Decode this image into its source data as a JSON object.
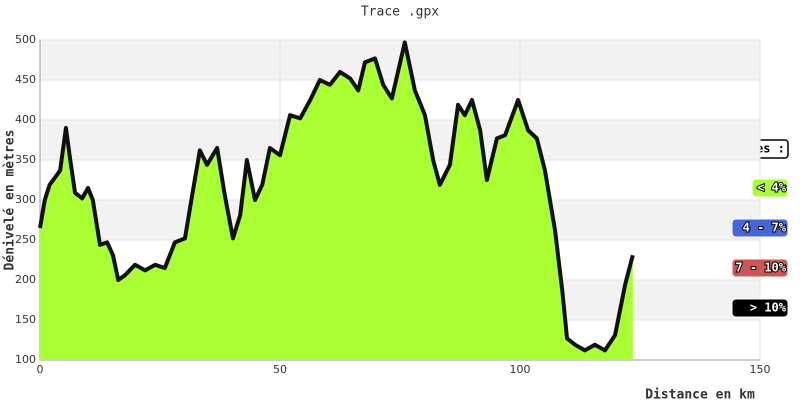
{
  "chart_data": {
    "type": "area",
    "title": "Trace .gpx",
    "x_label": "Distance en km",
    "y_label": "Dénivelé en mètres",
    "xlim": [
      0,
      150
    ],
    "xticks": [
      0,
      50,
      100,
      150
    ],
    "ylim": [
      100,
      500
    ],
    "yticks": [
      100,
      150,
      200,
      250,
      300,
      350,
      400,
      450,
      500
    ],
    "grid": true,
    "legend_position": "right",
    "legend_title": "Pentes :",
    "legend": [
      {
        "label": "< 4%",
        "color": "#aaff33"
      },
      {
        "label": "4 - 7%",
        "color": "#4466dd"
      },
      {
        "label": "7 - 10%",
        "color": "#cc5555"
      },
      {
        "label": "> 10%",
        "color": "#000000"
      }
    ],
    "series": [
      {
        "name": "Trace",
        "color": "#aaff33",
        "line_color": "#111111",
        "x": [
          0,
          1,
          2,
          3,
          4.2,
          5.4,
          6.3,
          7.3,
          8.8,
          10,
          11,
          12.5,
          14,
          15.2,
          16.3,
          17.7,
          19.8,
          21.9,
          24,
          26,
          28.1,
          30.2,
          31.7,
          33.3,
          34.8,
          36.9,
          38.5,
          40.2,
          41.7,
          43.1,
          44.8,
          46.3,
          47.9,
          50,
          52.1,
          54.2,
          56.3,
          58.3,
          60.4,
          62.5,
          64.6,
          66.3,
          67.7,
          69.8,
          71.5,
          73.3,
          76,
          78.1,
          80.2,
          81.9,
          83.3,
          85.4,
          87.1,
          88.5,
          90,
          91.7,
          93.1,
          95.2,
          96.9,
          99.6,
          101.7,
          103.5,
          105.2,
          107.3,
          108.8,
          109.8,
          111.5,
          113.5,
          115.6,
          117.7,
          119.8,
          121.9,
          123.5
        ],
        "values": [
          265,
          300,
          319,
          327,
          337,
          390,
          350,
          309,
          302,
          315,
          300,
          244,
          247,
          231,
          200,
          206,
          219,
          212,
          219,
          215,
          247,
          252,
          306,
          362,
          344,
          365,
          306,
          252,
          281,
          350,
          300,
          319,
          365,
          356,
          406,
          402,
          425,
          450,
          444,
          460,
          452,
          437,
          472,
          477,
          444,
          427,
          497,
          437,
          406,
          350,
          319,
          344,
          419,
          406,
          425,
          387,
          325,
          377,
          381,
          425,
          387,
          377,
          337,
          262,
          187,
          127,
          119,
          112,
          119,
          112,
          131,
          194,
          231
        ]
      }
    ]
  }
}
